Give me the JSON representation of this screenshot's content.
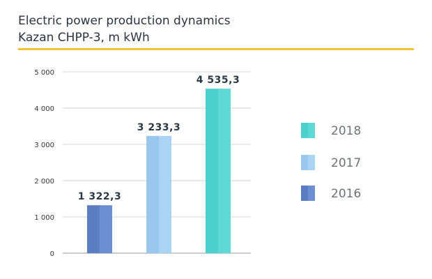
{
  "chart_data": {
    "type": "bar",
    "title": "Electric power production dynamics",
    "subtitle": "Kazan CHPP-3, m kWh",
    "categories": [
      "2016",
      "2017",
      "2018"
    ],
    "values": [
      1322.3,
      3233.3,
      4535.3
    ],
    "value_labels": [
      "1 322,3",
      "3 233,3",
      "4 535,3"
    ],
    "colors": {
      "2016": {
        "main": "#6b8fd3",
        "shade": "#5a7dc4"
      },
      "2017": {
        "main": "#a9d4f5",
        "shade": "#99c7ee"
      },
      "2018": {
        "main": "#5ddad8",
        "shade": "#4ccfcd"
      }
    },
    "yticks": [
      0,
      1000,
      2000,
      3000,
      4000,
      5000
    ],
    "ytick_labels": [
      "0",
      "1 000",
      "2 000",
      "3 000",
      "4 000",
      "5 000"
    ],
    "ylim": [
      0,
      5000
    ],
    "xlabel": "",
    "ylabel": "",
    "legend": [
      "2018",
      "2017",
      "2016"
    ],
    "legend_position": "right",
    "grid": true
  },
  "accent_color": "#f2c230"
}
